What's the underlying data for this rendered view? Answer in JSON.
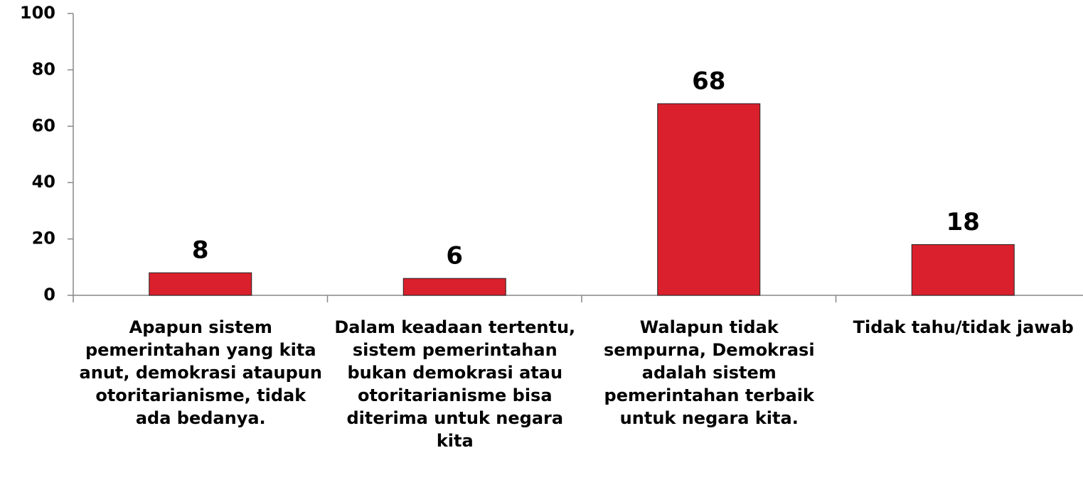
{
  "chart_data": {
    "type": "bar",
    "categories": [
      "Apapun sistem pemerintahan yang kita anut, demokrasi ataupun otoritarianisme, tidak ada bedanya.",
      "Dalam keadaan tertentu, sistem pemerintahan bukan demokrasi atau otoritarianisme bisa diterima untuk negara kita",
      "Walapun tidak sempurna, Demokrasi adalah sistem pemerintahan terbaik untuk negara kita.",
      "Tidak tahu/tidak jawab"
    ],
    "values": [
      8,
      6,
      68,
      18
    ],
    "color": "#da202c",
    "ylim": [
      0,
      100
    ],
    "yticks": [
      0,
      20,
      40,
      60,
      80,
      100
    ]
  }
}
